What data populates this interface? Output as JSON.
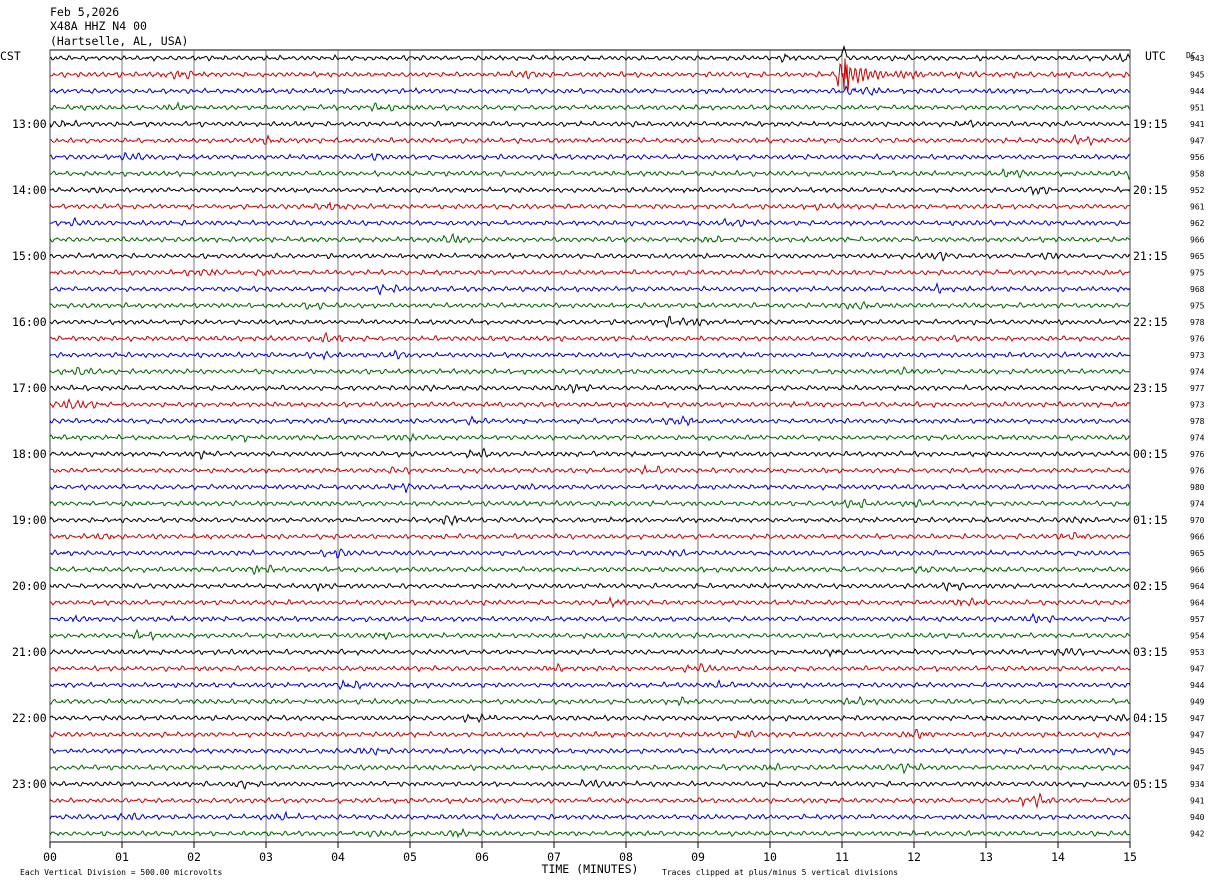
{
  "header": {
    "date": "Feb 5,2026",
    "station": "X48A HHZ N4 00",
    "location": "(Hartselle, AL, USA)"
  },
  "labels": {
    "left_tz": "CST",
    "right_tz": "UTC",
    "dc": "DC"
  },
  "chart_data": {
    "type": "line",
    "title": "",
    "xlabel": "TIME (MINUTES)",
    "ylabel": "",
    "xlim": [
      0,
      15
    ],
    "x_ticks": [
      "00",
      "01",
      "02",
      "03",
      "04",
      "05",
      "06",
      "07",
      "08",
      "09",
      "10",
      "11",
      "12",
      "13",
      "14",
      "15"
    ],
    "grid": "vertical every minute",
    "trace_colors": [
      "#000000",
      "#cc0000",
      "#0000cc",
      "#006600"
    ],
    "cst_hour_labels": [
      "13:00",
      "14:00",
      "15:00",
      "16:00",
      "17:00",
      "18:00",
      "19:00",
      "20:00",
      "21:00",
      "22:00",
      "23:00"
    ],
    "utc_hour_labels": [
      "19:15",
      "20:15",
      "21:15",
      "22:15",
      "23:15",
      "00:15",
      "01:15",
      "02:15",
      "03:15",
      "04:15",
      "05:15"
    ],
    "dc_offsets": [
      943,
      945,
      944,
      951,
      941,
      947,
      956,
      958,
      952,
      961,
      962,
      966,
      965,
      975,
      968,
      975,
      978,
      976,
      973,
      974,
      977,
      973,
      978,
      974,
      976,
      976,
      980,
      974,
      970,
      966,
      965,
      966,
      964,
      964,
      957,
      954,
      953,
      947,
      944,
      949,
      947,
      947,
      945,
      947,
      934,
      941,
      940,
      942
    ],
    "event": {
      "trace_row": 1,
      "onset_minute": 10.93,
      "peak_minute": 11.03
    },
    "footer": {
      "scale_note": "Each Vertical Division =  500.00 microvolts",
      "clip_note": "Traces clipped at plus/minus 5 vertical divisions"
    }
  }
}
